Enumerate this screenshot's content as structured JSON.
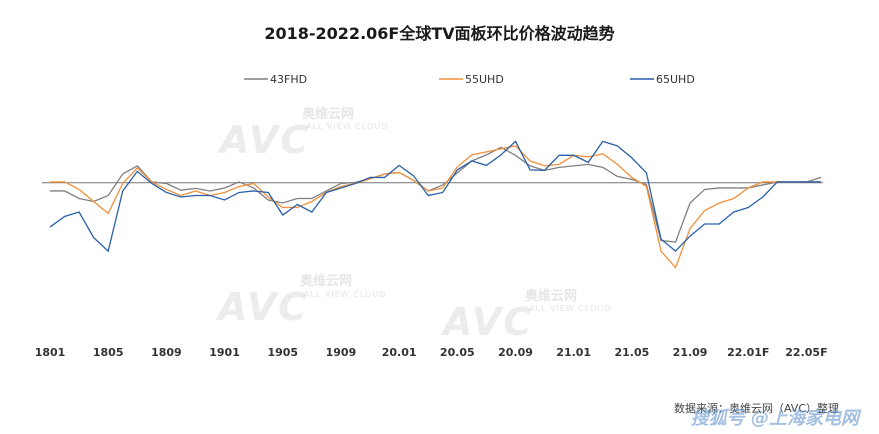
{
  "title": "2018-2022.06F全球TV面板环比价格波动趋势",
  "source_note": "数据来源：奥维云网（AVC）整理",
  "watermark_text": "搜狐号 @上海家电网",
  "logo": {
    "mark": "AVC",
    "cn": "奥维云网",
    "en": "ALL VIEW CLOUD"
  },
  "colors": {
    "43FHD": "#808080",
    "55UHD": "#f0903a",
    "65UHD": "#2a5fa8",
    "baseline": "#777777"
  },
  "chart_data": {
    "type": "line",
    "title": "2018-2022.06F全球TV面板环比价格波动趋势",
    "xlabel": "",
    "ylabel": "",
    "ylim": [
      -0.09,
      0.055
    ],
    "grid": false,
    "legend_position": "top",
    "tick_labels": [
      "1801",
      "1805",
      "1809",
      "1901",
      "1905",
      "1909",
      "20.01",
      "20.05",
      "20.09",
      "21.01",
      "21.05",
      "21.09",
      "22.01F",
      "22.05F"
    ],
    "x": [
      "1801",
      "1802",
      "1803",
      "1804",
      "1805",
      "1806",
      "1807",
      "1808",
      "1809",
      "1810",
      "1811",
      "1812",
      "1901",
      "1902",
      "1903",
      "1904",
      "1905",
      "1906",
      "1907",
      "1908",
      "1909",
      "1910",
      "1911",
      "1912",
      "2001",
      "2002",
      "2003",
      "2004",
      "2005",
      "2006",
      "2007",
      "2008",
      "2009",
      "2010",
      "2011",
      "2012",
      "2101",
      "2102",
      "2103",
      "2104",
      "2105",
      "2106",
      "2107",
      "2108",
      "2109",
      "2110",
      "2111",
      "2112",
      "2201",
      "2202",
      "2203",
      "2204",
      "2205",
      "2206"
    ],
    "series": [
      {
        "name": "43FHD",
        "values": [
          -0.0055,
          -0.0055,
          -0.0105,
          -0.0125,
          -0.0085,
          0.0058,
          0.0112,
          0.0005,
          -0.0005,
          -0.005,
          -0.0038,
          -0.0055,
          -0.0035,
          0.0005,
          -0.0035,
          -0.0115,
          -0.0135,
          -0.0105,
          -0.0105,
          -0.0055,
          -0.0005,
          0.0002,
          0.0025,
          0.0058,
          0.0068,
          0.0015,
          -0.0055,
          -0.0015,
          0.0065,
          0.0145,
          0.0185,
          0.0235,
          0.0182,
          0.0112,
          0.0082,
          0.0102,
          0.0112,
          0.0122,
          0.0102,
          0.0042,
          0.0022,
          -0.0013,
          -0.0385,
          -0.0395,
          -0.0135,
          -0.0045,
          -0.0035,
          -0.0035,
          -0.0035,
          -0.0015,
          0.0005,
          0.0002,
          0.0005,
          0.0035
        ]
      },
      {
        "name": "55UHD",
        "values": [
          0.0005,
          0.0005,
          -0.0045,
          -0.0125,
          -0.0205,
          -0.0005,
          0.0098,
          0.0005,
          -0.0045,
          -0.0085,
          -0.0055,
          -0.0085,
          -0.0065,
          -0.0025,
          -0.0005,
          -0.0095,
          -0.0165,
          -0.0165,
          -0.0125,
          -0.0065,
          -0.0025,
          -0.0005,
          0.0025,
          0.0058,
          0.0068,
          0.0015,
          -0.0055,
          -0.0035,
          0.0105,
          0.0185,
          0.0205,
          0.0225,
          0.0245,
          0.0145,
          0.0112,
          0.0122,
          0.0182,
          0.0172,
          0.0192,
          0.0122,
          0.0035,
          -0.0025,
          -0.0455,
          -0.0565,
          -0.0305,
          -0.0185,
          -0.0135,
          -0.0105,
          -0.0035,
          0.0005,
          0.0005,
          0.0005,
          0.0005,
          0.0005
        ]
      },
      {
        "name": "65UHD",
        "values": [
          -0.0295,
          -0.0225,
          -0.0195,
          -0.0365,
          -0.0455,
          -0.0055,
          0.0075,
          -0.0005,
          -0.0065,
          -0.0095,
          -0.0085,
          -0.0085,
          -0.0115,
          -0.0065,
          -0.0055,
          -0.0065,
          -0.0215,
          -0.0145,
          -0.0195,
          -0.0065,
          -0.0035,
          -0.0005,
          0.0035,
          0.0035,
          0.0115,
          0.0045,
          -0.0085,
          -0.0065,
          0.0085,
          0.0145,
          0.0115,
          0.0185,
          0.0275,
          0.0085,
          0.0082,
          0.0182,
          0.0182,
          0.0135,
          0.0275,
          0.0245,
          0.0165,
          0.0065,
          -0.0375,
          -0.0455,
          -0.0355,
          -0.0275,
          -0.0275,
          -0.0195,
          -0.0165,
          -0.0095,
          0.0005,
          0.0005,
          0.0005,
          0.0005
        ]
      }
    ]
  }
}
